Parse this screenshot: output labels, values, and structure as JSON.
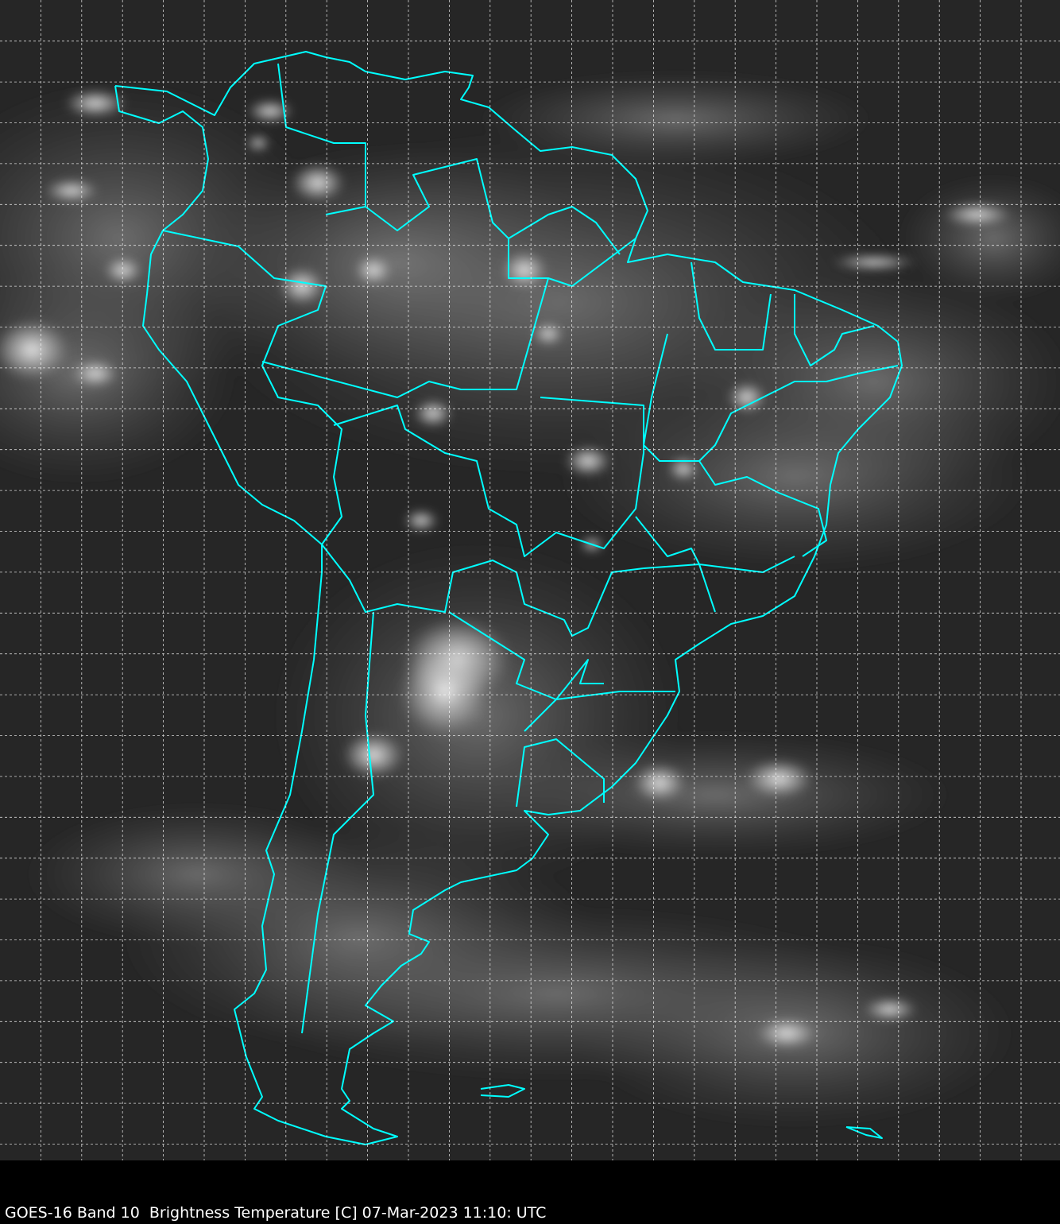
{
  "caption": "GOES-16 Band 10  Brightness Temperature [C] 07-Mar-2023 11:10: UTC",
  "map": {
    "product": "GOES-16 Band 10",
    "variable": "Brightness Temperature [C]",
    "datetime": "07-Mar-2023 11:10: UTC",
    "colormap": "grayscale",
    "gridlines": true,
    "boundary_color": "#00ffff",
    "grid_color": "#ffffff",
    "background_color": "#000000"
  }
}
